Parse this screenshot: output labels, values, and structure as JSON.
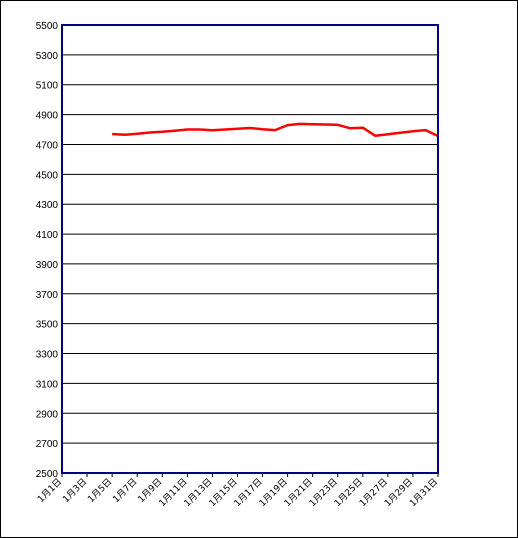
{
  "chart_data": {
    "type": "line",
    "title": "",
    "xlabel": "",
    "ylabel": "",
    "ylim": [
      2500,
      5500
    ],
    "yticks": [
      2500,
      2700,
      2900,
      3100,
      3300,
      3500,
      3700,
      3900,
      4100,
      4300,
      4500,
      4700,
      4900,
      5100,
      5300,
      5500
    ],
    "xlim": [
      1,
      31
    ],
    "xticks": [
      1,
      3,
      5,
      7,
      9,
      11,
      13,
      15,
      17,
      19,
      21,
      23,
      25,
      27,
      29,
      31
    ],
    "xtick_labels": [
      "1月1日",
      "1月3日",
      "1月5日",
      "1月7日",
      "1月9日",
      "1月11日",
      "1月13日",
      "1月15日",
      "1月17日",
      "1月19日",
      "1月21日",
      "1月23日",
      "1月25日",
      "1月27日",
      "1月29日",
      "1月31日"
    ],
    "grid": true,
    "legend": "none",
    "colors": {
      "series": "#ff0000",
      "plot_border": "#000080",
      "gridline": "#000000"
    },
    "series": [
      {
        "x": [
          5,
          6,
          7,
          8,
          9,
          10,
          11,
          12,
          13,
          14,
          15,
          16,
          17,
          18,
          19,
          20,
          21,
          22,
          23,
          24,
          25,
          26,
          27,
          28,
          29,
          30,
          31
        ],
        "y": [
          4770,
          4765,
          4772,
          4780,
          4785,
          4792,
          4800,
          4800,
          4795,
          4800,
          4805,
          4810,
          4802,
          4796,
          4830,
          4838,
          4836,
          4834,
          4832,
          4808,
          4812,
          4758,
          4768,
          4778,
          4788,
          4796,
          4757
        ]
      }
    ]
  }
}
